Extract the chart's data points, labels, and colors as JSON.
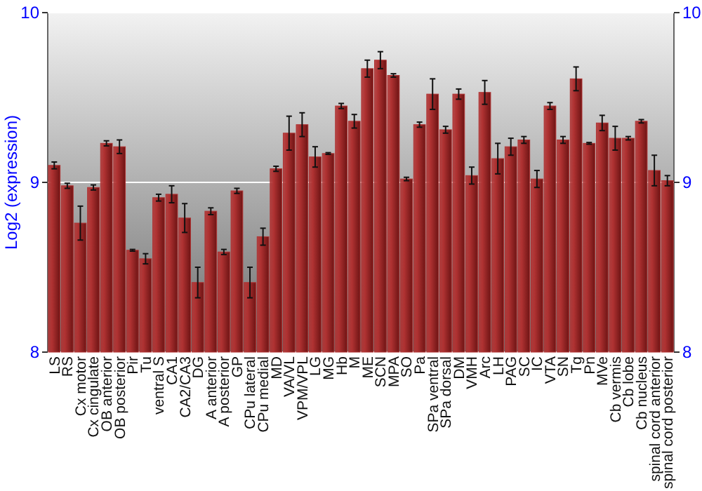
{
  "chart_data": {
    "type": "bar",
    "ylabel": "Log2 (expression)",
    "categories": [
      "LS",
      "RS",
      "Cx motor",
      "Cx cingulate",
      "OB anterior",
      "OB posterior",
      "Pir",
      "Tu",
      "ventral S",
      "CA1",
      "CA2/CA3",
      "DG",
      "A anterior",
      "A posterior",
      "GP",
      "CPu lateral",
      "CPu medial",
      "MD",
      "VA/VL",
      "VPM/VPL",
      "LG",
      "MG",
      "Hb",
      "M",
      "ME",
      "SCN",
      "MPA",
      "SO",
      "Pa",
      "SPa ventral",
      "SPa dorsal",
      "DM",
      "VMH",
      "Arc",
      "LH",
      "PAG",
      "SC",
      "IC",
      "VTA",
      "SN",
      "Tg",
      "Pn",
      "MVe",
      "Cb vermis",
      "Cb lobe",
      "Cb nucleus",
      "spinal cord anterior",
      "spinal cord posterior"
    ],
    "values": [
      9.1,
      8.98,
      8.76,
      8.97,
      9.23,
      9.21,
      8.6,
      8.55,
      8.91,
      8.93,
      8.79,
      8.41,
      8.83,
      8.59,
      8.95,
      8.41,
      8.68,
      9.08,
      9.29,
      9.34,
      9.15,
      9.17,
      9.45,
      9.36,
      9.67,
      9.72,
      9.63,
      9.02,
      9.34,
      9.52,
      9.31,
      9.52,
      9.04,
      9.53,
      9.14,
      9.21,
      9.25,
      9.02,
      9.45,
      9.25,
      9.61,
      9.23,
      9.35,
      9.26,
      9.26,
      9.36,
      9.07,
      9.01
    ],
    "errors": [
      0.02,
      0.015,
      0.1,
      0.015,
      0.015,
      0.04,
      0.005,
      0.03,
      0.02,
      0.05,
      0.085,
      0.09,
      0.02,
      0.015,
      0.015,
      0.09,
      0.05,
      0.015,
      0.1,
      0.07,
      0.06,
      0.005,
      0.015,
      0.04,
      0.05,
      0.05,
      0.01,
      0.01,
      0.015,
      0.09,
      0.02,
      0.03,
      0.05,
      0.07,
      0.09,
      0.05,
      0.02,
      0.05,
      0.02,
      0.02,
      0.07,
      0.005,
      0.045,
      0.07,
      0.01,
      0.01,
      0.09,
      0.03
    ],
    "color": "#b03232",
    "ylim": [
      8,
      10
    ],
    "yticks": [
      8,
      9,
      10
    ],
    "y2lim": [
      8,
      10
    ],
    "y2ticks": [
      8,
      9,
      10
    ],
    "grid": "y"
  }
}
